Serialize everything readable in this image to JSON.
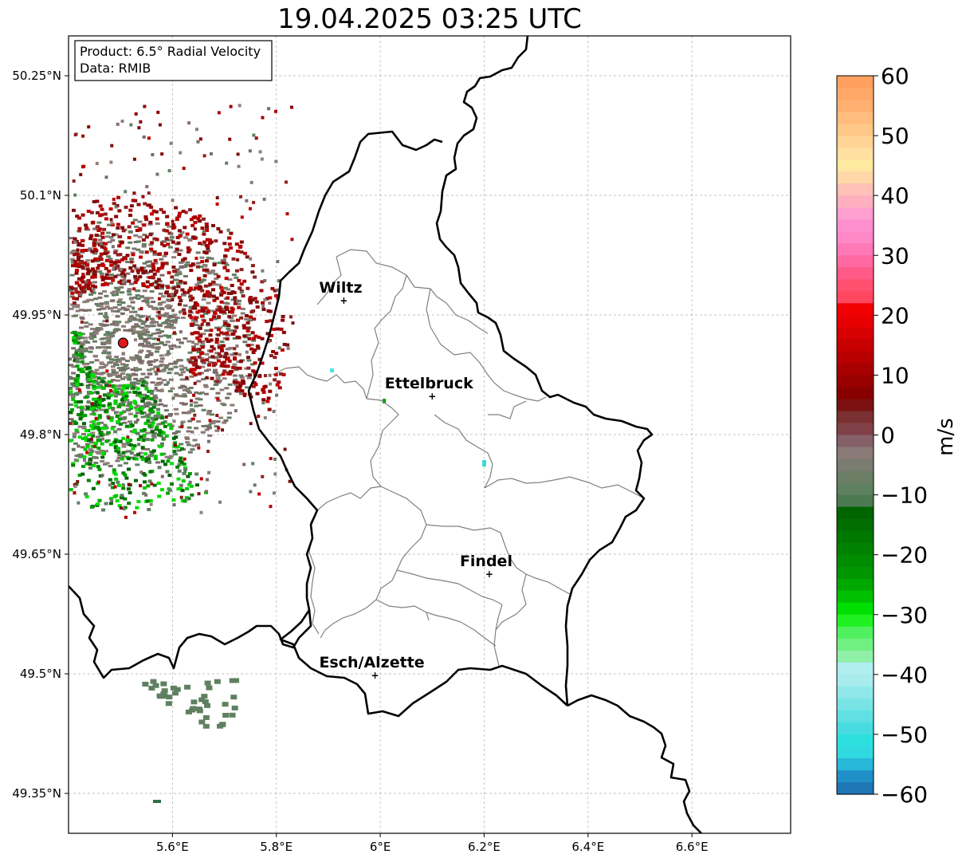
{
  "title": "19.04.2025 03:25 UTC",
  "infobox": {
    "line1": "Product: 6.5° Radial Velocity",
    "line2": "Data: RMIB"
  },
  "axes": {
    "lat_ticks": [
      {
        "label": "50.25°N",
        "value": 50.25
      },
      {
        "label": "50.1°N",
        "value": 50.1
      },
      {
        "label": "49.95°N",
        "value": 49.95
      },
      {
        "label": "49.8°N",
        "value": 49.8
      },
      {
        "label": "49.65°N",
        "value": 49.65
      },
      {
        "label": "49.5°N",
        "value": 49.5
      },
      {
        "label": "49.35°N",
        "value": 49.35
      }
    ],
    "lon_ticks": [
      {
        "label": "5.6°E",
        "value": 5.6
      },
      {
        "label": "5.8°E",
        "value": 5.8
      },
      {
        "label": "6°E",
        "value": 6.0
      },
      {
        "label": "6.2°E",
        "value": 6.2
      },
      {
        "label": "6.4°E",
        "value": 6.4
      },
      {
        "label": "6.6°E",
        "value": 6.6
      }
    ]
  },
  "cities": [
    {
      "name": "Wiltz",
      "lon": 5.93,
      "lat": 49.968
    },
    {
      "name": "Ettelbruck",
      "lon": 6.1,
      "lat": 49.848
    },
    {
      "name": "Findel",
      "lon": 6.21,
      "lat": 49.625
    },
    {
      "name": "Esch/Alzette",
      "lon": 5.99,
      "lat": 49.498
    }
  ],
  "radar": {
    "lon": 5.505,
    "lat": 49.915,
    "color": "#e0191b"
  },
  "colorbar": {
    "label": "m/s",
    "ticks": [
      "60",
      "50",
      "40",
      "30",
      "20",
      "10",
      "0",
      "−10",
      "−20",
      "−30",
      "−40",
      "−50",
      "−60"
    ],
    "min": -60,
    "max": 60,
    "colors": {
      "negative_blue": "#1f77b4",
      "cyan": "#2de0e0",
      "light_cyan": "#b0eef0",
      "light_green": "#90f0a8",
      "bright_green": "#00e000",
      "dark_green": "#006400",
      "gray_green": "#5f8060",
      "gray": "#8a7a78",
      "maroon": "#7a1010",
      "red": "#f00000",
      "pink": "#ff88c8",
      "light_yellow": "#ffe8a0",
      "orange": "#ffa060"
    }
  }
}
